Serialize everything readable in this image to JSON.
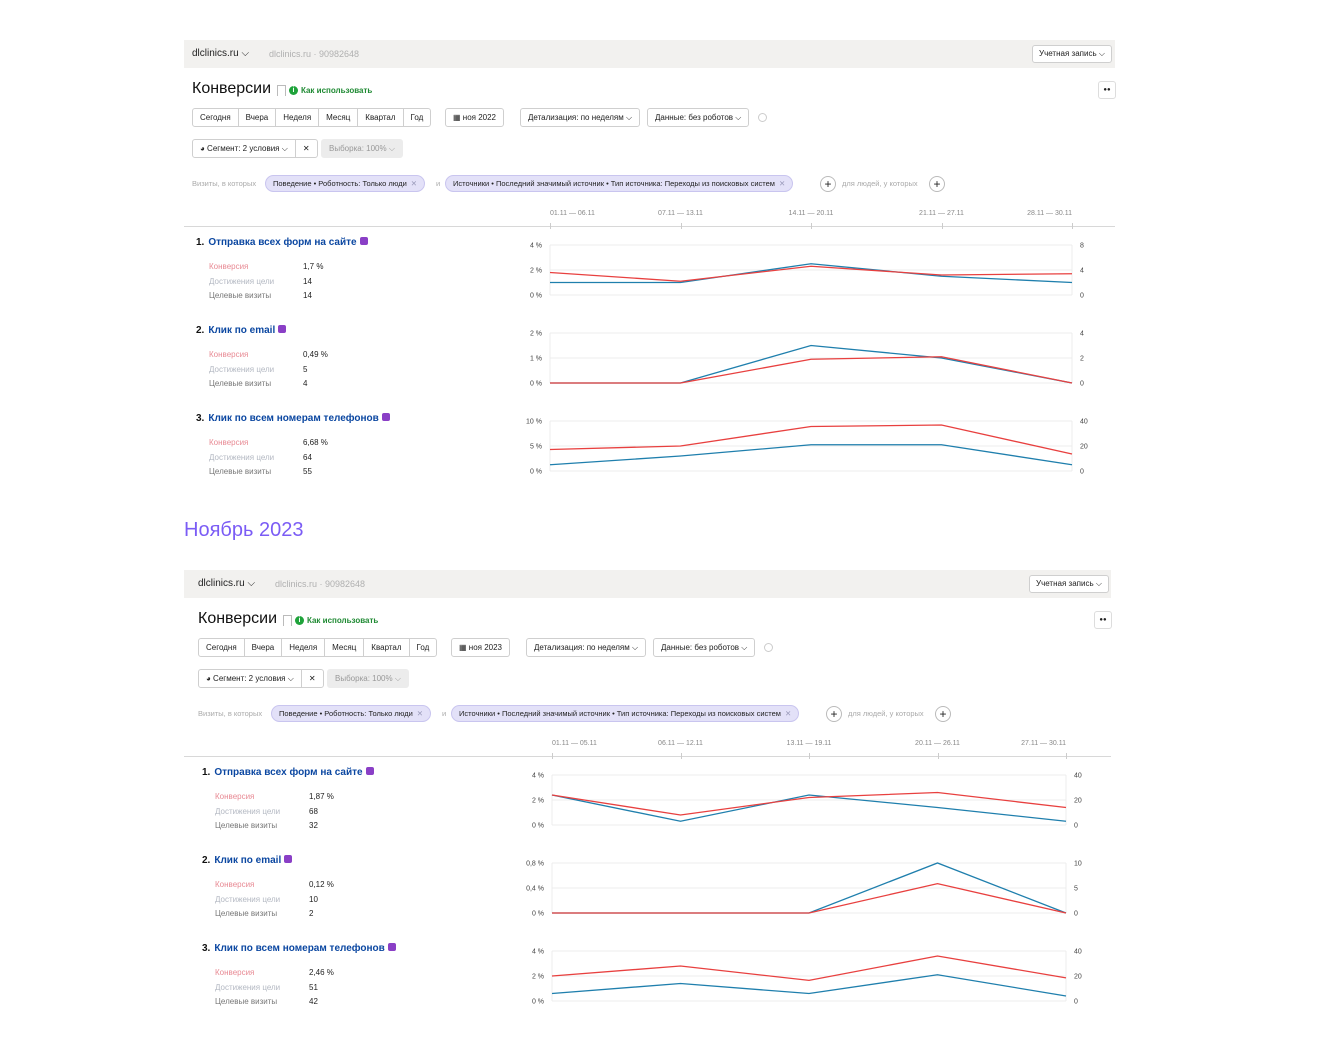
{
  "heading_2023": "Ноябрь 2023",
  "colors": {
    "conversion": "#e8403f",
    "achievements": "#1f7fad",
    "conversion_label": "#e88a94",
    "achievements_label": "#b3b8c2",
    "visits_label": "#777777",
    "heading": "#7b5cf5"
  },
  "reports": [
    {
      "site": "dlclinics.ru",
      "counter": "dlclinics.ru · 90982648",
      "account": "Учетная запись",
      "title": "Конверсии",
      "help_link": "Как использовать",
      "periods": [
        "Сегодня",
        "Вчера",
        "Неделя",
        "Месяц",
        "Квартал",
        "Год"
      ],
      "date": "ноя 2022",
      "detail": "Детализация: по неделям",
      "data_filter": "Данные: без роботов",
      "segment": "Сегмент: 2 условия",
      "sample": "Выборка: 100%",
      "filter_prefix": "Визиты, в которых",
      "chips": [
        "Поведение • Роботность: Только люди",
        "Источники • Последний значимый источник • Тип источника: Переходы из поисковых систем"
      ],
      "and": "и",
      "people_label": "для людей, у которых",
      "weeks": [
        "01.11 — 06.11",
        "07.11 — 13.11",
        "14.11 — 20.11",
        "21.11 — 27.11",
        "28.11 — 30.11"
      ],
      "goals": [
        {
          "num": "1.",
          "name": "Отправка всех форм на сайте",
          "icon": "form-icon",
          "metrics": [
            {
              "label": "Конверсия",
              "value": "1,7 %"
            },
            {
              "label": "Достижения цели",
              "value": "14"
            },
            {
              "label": "Целевые визиты",
              "value": "14"
            }
          ],
          "chart": {
            "type": "line",
            "left_ticks": [
              "4 %",
              "2 %",
              "0 %"
            ],
            "right_ticks": [
              "8",
              "4",
              "0"
            ],
            "left_max": 4,
            "right_max": 8,
            "conversion_pct": [
              1.8,
              1.1,
              2.3,
              1.6,
              1.7
            ],
            "achievements": [
              2,
              2,
              5,
              3,
              2
            ]
          }
        },
        {
          "num": "2.",
          "name": "Клик по email",
          "icon": "email-icon",
          "metrics": [
            {
              "label": "Конверсия",
              "value": "0,49 %"
            },
            {
              "label": "Достижения цели",
              "value": "5"
            },
            {
              "label": "Целевые визиты",
              "value": "4"
            }
          ],
          "chart": {
            "type": "line",
            "left_ticks": [
              "2 %",
              "1 %",
              "0 %"
            ],
            "right_ticks": [
              "4",
              "2",
              "0"
            ],
            "left_max": 2,
            "right_max": 4,
            "conversion_pct": [
              0,
              0,
              0.95,
              1.05,
              0
            ],
            "achievements": [
              0,
              0,
              3,
              2,
              0
            ]
          }
        },
        {
          "num": "3.",
          "name": "Клик по всем номерам телефонов",
          "icon": "phone-icon",
          "metrics": [
            {
              "label": "Конверсия",
              "value": "6,68 %"
            },
            {
              "label": "Достижения цели",
              "value": "64"
            },
            {
              "label": "Целевые визиты",
              "value": "55"
            }
          ],
          "chart": {
            "type": "line",
            "left_ticks": [
              "10 %",
              "5 %",
              "0 %"
            ],
            "right_ticks": [
              "40",
              "20",
              "0"
            ],
            "left_max": 10,
            "right_max": 40,
            "conversion_pct": [
              4.3,
              5.0,
              8.9,
              9.2,
              3.4
            ],
            "achievements": [
              5,
              12,
              21,
              21,
              5
            ]
          }
        }
      ]
    },
    {
      "site": "dlclinics.ru",
      "counter": "dlclinics.ru · 90982648",
      "account": "Учетная запись",
      "title": "Конверсии",
      "help_link": "Как использовать",
      "periods": [
        "Сегодня",
        "Вчера",
        "Неделя",
        "Месяц",
        "Квартал",
        "Год"
      ],
      "date": "ноя 2023",
      "detail": "Детализация: по неделям",
      "data_filter": "Данные: без роботов",
      "segment": "Сегмент: 2 условия",
      "sample": "Выборка: 100%",
      "filter_prefix": "Визиты, в которых",
      "chips": [
        "Поведение • Роботность: Только люди",
        "Источники • Последний значимый источник • Тип источника: Переходы из поисковых систем"
      ],
      "and": "и",
      "people_label": "для людей, у которых",
      "weeks": [
        "01.11 — 05.11",
        "06.11 — 12.11",
        "13.11 — 19.11",
        "20.11 — 26.11",
        "27.11 — 30.11"
      ],
      "goals": [
        {
          "num": "1.",
          "name": "Отправка всех форм на сайте",
          "icon": "form-icon",
          "metrics": [
            {
              "label": "Конверсия",
              "value": "1,87 %"
            },
            {
              "label": "Достижения цели",
              "value": "68"
            },
            {
              "label": "Целевые визиты",
              "value": "32"
            }
          ],
          "chart": {
            "type": "line",
            "left_ticks": [
              "4 %",
              "2 %",
              "0 %"
            ],
            "right_ticks": [
              "40",
              "20",
              "0"
            ],
            "left_max": 4,
            "right_max": 40,
            "conversion_pct": [
              2.4,
              0.8,
              2.2,
              2.6,
              1.4
            ],
            "achievements": [
              24,
              3,
              24,
              14,
              3
            ]
          }
        },
        {
          "num": "2.",
          "name": "Клик по email",
          "icon": "email-icon",
          "metrics": [
            {
              "label": "Конверсия",
              "value": "0,12 %"
            },
            {
              "label": "Достижения цели",
              "value": "10"
            },
            {
              "label": "Целевые визиты",
              "value": "2"
            }
          ],
          "chart": {
            "type": "line",
            "left_ticks": [
              "0,8 %",
              "0,4 %",
              "0 %"
            ],
            "right_ticks": [
              "10",
              "5",
              "0"
            ],
            "left_max": 0.8,
            "right_max": 10,
            "conversion_pct": [
              0,
              0,
              0,
              0.47,
              0
            ],
            "achievements": [
              0,
              0,
              0,
              10,
              0
            ]
          }
        },
        {
          "num": "3.",
          "name": "Клик по всем номерам телефонов",
          "icon": "phone-icon",
          "metrics": [
            {
              "label": "Конверсия",
              "value": "2,46 %"
            },
            {
              "label": "Достижения цели",
              "value": "51"
            },
            {
              "label": "Целевые визиты",
              "value": "42"
            }
          ],
          "chart": {
            "type": "line",
            "left_ticks": [
              "4 %",
              "2 %",
              "0 %"
            ],
            "right_ticks": [
              "40",
              "20",
              "0"
            ],
            "left_max": 4,
            "right_max": 40,
            "conversion_pct": [
              2.0,
              2.8,
              1.65,
              3.6,
              1.85
            ],
            "achievements": [
              6,
              14,
              6,
              21,
              4
            ]
          }
        }
      ]
    }
  ]
}
